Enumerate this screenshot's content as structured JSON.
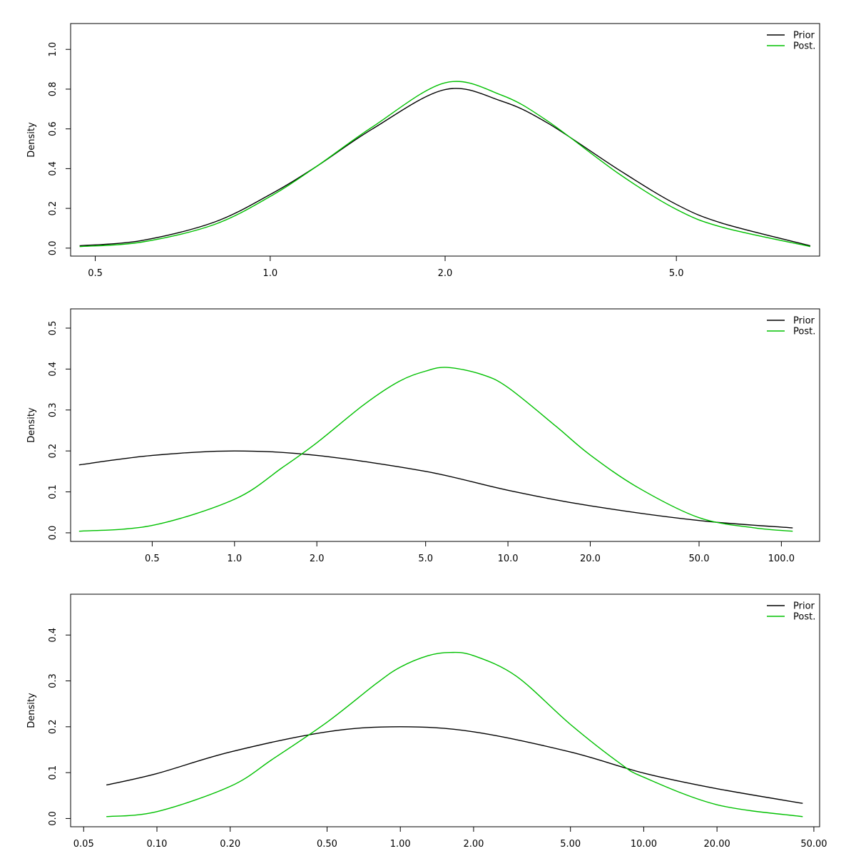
{
  "figure_background": "#ffffff",
  "chart_data": [
    {
      "type": "line",
      "title": "",
      "xlabel": "",
      "ylabel": "Density",
      "x_scale": "log",
      "xlim": [
        0.4535,
        8.82
      ],
      "ylim": [
        -0.04,
        1.13
      ],
      "x_ticks": [
        {
          "value": 0.5,
          "label": "0.5"
        },
        {
          "value": 1.0,
          "label": "1.0"
        },
        {
          "value": 2.0,
          "label": "2.0"
        },
        {
          "value": 5.0,
          "label": "5.0"
        }
      ],
      "y_ticks": [
        {
          "value": 0.0,
          "label": "0.0"
        },
        {
          "value": 0.2,
          "label": "0.2"
        },
        {
          "value": 0.4,
          "label": "0.4"
        },
        {
          "value": 0.6,
          "label": "0.6"
        },
        {
          "value": 0.8,
          "label": "0.8"
        },
        {
          "value": 1.0,
          "label": "1.0"
        }
      ],
      "legend": {
        "position": "top-right"
      },
      "series": [
        {
          "name": "Prior",
          "color": "#000000",
          "x": [
            0.47,
            0.6,
            0.8,
            1.0,
            1.2,
            1.5,
            2.0,
            2.5,
            3.0,
            4.0,
            5.0,
            6.0,
            8.5
          ],
          "y": [
            0.012,
            0.038,
            0.13,
            0.27,
            0.41,
            0.6,
            0.798,
            0.74,
            0.63,
            0.39,
            0.22,
            0.125,
            0.012
          ]
        },
        {
          "name": "Post.",
          "color": "#00c000",
          "x": [
            0.47,
            0.6,
            0.8,
            1.0,
            1.2,
            1.5,
            2.0,
            2.5,
            3.0,
            4.0,
            5.0,
            6.0,
            8.5
          ],
          "y": [
            0.008,
            0.03,
            0.118,
            0.26,
            0.41,
            0.61,
            0.832,
            0.77,
            0.64,
            0.37,
            0.195,
            0.105,
            0.008
          ]
        }
      ]
    },
    {
      "type": "line",
      "title": "",
      "xlabel": "",
      "ylabel": "Density",
      "x_scale": "log",
      "xlim": [
        0.2515,
        138.0
      ],
      "ylim": [
        -0.021,
        0.547
      ],
      "x_ticks": [
        {
          "value": 0.5,
          "label": "0.5"
        },
        {
          "value": 1.0,
          "label": "1.0"
        },
        {
          "value": 2.0,
          "label": "2.0"
        },
        {
          "value": 5.0,
          "label": "5.0"
        },
        {
          "value": 10.0,
          "label": "10.0"
        },
        {
          "value": 20.0,
          "label": "20.0"
        },
        {
          "value": 50.0,
          "label": "50.0"
        },
        {
          "value": 100.0,
          "label": "100.0"
        }
      ],
      "y_ticks": [
        {
          "value": 0.0,
          "label": "0.0"
        },
        {
          "value": 0.1,
          "label": "0.1"
        },
        {
          "value": 0.2,
          "label": "0.2"
        },
        {
          "value": 0.3,
          "label": "0.3"
        },
        {
          "value": 0.4,
          "label": "0.4"
        },
        {
          "value": 0.5,
          "label": "0.5"
        }
      ],
      "legend": {
        "position": "top-right"
      },
      "series": [
        {
          "name": "Prior",
          "color": "#000000",
          "x": [
            0.27,
            0.5,
            1.0,
            2.0,
            5.0,
            10.0,
            20.0,
            50.0,
            110.0
          ],
          "y": [
            0.166,
            0.189,
            0.2,
            0.189,
            0.15,
            0.104,
            0.066,
            0.03,
            0.012
          ]
        },
        {
          "name": "Post.",
          "color": "#00c000",
          "x": [
            0.27,
            0.5,
            1.0,
            1.5,
            2.0,
            3.0,
            4.0,
            5.0,
            6.0,
            8.0,
            10.0,
            15.0,
            20.0,
            30.0,
            50.0,
            80.0,
            110.0
          ],
          "y": [
            0.004,
            0.018,
            0.082,
            0.16,
            0.22,
            0.315,
            0.37,
            0.395,
            0.404,
            0.387,
            0.355,
            0.26,
            0.19,
            0.11,
            0.037,
            0.012,
            0.004
          ]
        }
      ]
    },
    {
      "type": "line",
      "title": "",
      "xlabel": "",
      "ylabel": "Density",
      "x_scale": "log",
      "xlim": [
        0.0442,
        52.8
      ],
      "ylim": [
        -0.018,
        0.489
      ],
      "x_ticks": [
        {
          "value": 0.05,
          "label": "0.05"
        },
        {
          "value": 0.1,
          "label": "0.10"
        },
        {
          "value": 0.2,
          "label": "0.20"
        },
        {
          "value": 0.5,
          "label": "0.50"
        },
        {
          "value": 1.0,
          "label": "1.00"
        },
        {
          "value": 2.0,
          "label": "2.00"
        },
        {
          "value": 5.0,
          "label": "5.00"
        },
        {
          "value": 10.0,
          "label": "10.00"
        },
        {
          "value": 20.0,
          "label": "20.00"
        },
        {
          "value": 50.0,
          "label": "50.00"
        }
      ],
      "y_ticks": [
        {
          "value": 0.0,
          "label": "0.0"
        },
        {
          "value": 0.1,
          "label": "0.1"
        },
        {
          "value": 0.2,
          "label": "0.2"
        },
        {
          "value": 0.3,
          "label": "0.3"
        },
        {
          "value": 0.4,
          "label": "0.4"
        }
      ],
      "legend": {
        "position": "top-right"
      },
      "series": [
        {
          "name": "Prior",
          "color": "#000000",
          "x": [
            0.062,
            0.1,
            0.2,
            0.5,
            1.0,
            2.0,
            5.0,
            10.0,
            20.0,
            45.0
          ],
          "y": [
            0.073,
            0.098,
            0.145,
            0.189,
            0.2,
            0.189,
            0.145,
            0.099,
            0.065,
            0.033
          ]
        },
        {
          "name": "Post.",
          "color": "#00c000",
          "x": [
            0.062,
            0.1,
            0.2,
            0.3,
            0.5,
            0.8,
            1.0,
            1.3,
            1.6,
            2.0,
            3.0,
            5.0,
            8.0,
            10.0,
            20.0,
            45.0
          ],
          "y": [
            0.004,
            0.015,
            0.07,
            0.13,
            0.21,
            0.295,
            0.33,
            0.355,
            0.362,
            0.355,
            0.31,
            0.205,
            0.12,
            0.09,
            0.03,
            0.004
          ]
        }
      ]
    }
  ]
}
